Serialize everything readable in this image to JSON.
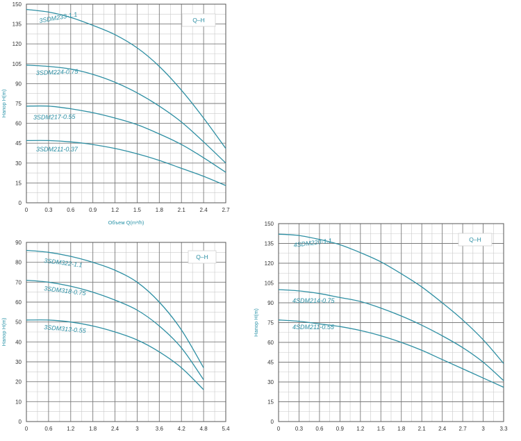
{
  "chart_data": [
    {
      "type": "line",
      "legend": "Q–H",
      "ylabel": "Напор H(m)",
      "xlabel": "Объем Q(m³/h)",
      "xlim": [
        0,
        2.7
      ],
      "ylim": [
        0,
        150
      ],
      "x_ticks": [
        "0",
        "0.3",
        "0.6",
        "0.9",
        "1.2",
        "1.5",
        "1.8",
        "2.1",
        "2.4",
        "2.7"
      ],
      "y_ticks": [
        "0",
        "15",
        "30",
        "45",
        "60",
        "75",
        "90",
        "105",
        "120",
        "135",
        "150"
      ],
      "series": [
        {
          "name": "3SDM233-1.1",
          "x": [
            0,
            0.3,
            0.6,
            0.9,
            1.2,
            1.5,
            1.8,
            2.1,
            2.4,
            2.7
          ],
          "y": [
            146,
            144,
            140,
            134,
            127,
            117,
            103,
            85,
            64,
            41
          ]
        },
        {
          "name": "3SDM224-0.75",
          "x": [
            0,
            0.3,
            0.6,
            0.9,
            1.2,
            1.5,
            1.8,
            2.1,
            2.4,
            2.7
          ],
          "y": [
            104,
            103,
            101,
            97,
            91,
            83,
            73,
            61,
            46,
            30
          ]
        },
        {
          "name": "3SDM217-0.55",
          "x": [
            0,
            0.3,
            0.6,
            0.9,
            1.2,
            1.5,
            1.8,
            2.1,
            2.4,
            2.7
          ],
          "y": [
            73,
            73,
            71,
            68,
            64,
            59,
            52,
            44,
            34,
            23
          ]
        },
        {
          "name": "3SDM211-0.37",
          "x": [
            0,
            0.3,
            0.6,
            0.9,
            1.2,
            1.5,
            1.8,
            2.1,
            2.4,
            2.7
          ],
          "y": [
            47,
            47,
            46,
            44,
            41,
            37,
            32,
            26,
            20,
            13
          ]
        }
      ]
    },
    {
      "type": "line",
      "legend": "Q–H",
      "ylabel": "Напор H(m)",
      "xlabel": "",
      "xlim": [
        0,
        5.4
      ],
      "ylim": [
        0,
        90
      ],
      "x_ticks": [
        "0",
        "0.6",
        "1.2",
        "1.8",
        "2.4",
        "3",
        "3.6",
        "4.2",
        "4.8",
        "5.4"
      ],
      "y_ticks": [
        "0",
        "10",
        "20",
        "30",
        "40",
        "50",
        "60",
        "70",
        "80",
        "90"
      ],
      "series": [
        {
          "name": "3SDM322-1.1",
          "x": [
            0,
            0.6,
            1.2,
            1.8,
            2.4,
            3.0,
            3.6,
            4.2,
            4.8
          ],
          "y": [
            86,
            85,
            83,
            80,
            76,
            70,
            60,
            46,
            27
          ]
        },
        {
          "name": "3SDM318-0.75",
          "x": [
            0,
            0.6,
            1.2,
            1.8,
            2.4,
            3.0,
            3.6,
            4.2,
            4.8
          ],
          "y": [
            71,
            70,
            68,
            65,
            61,
            56,
            48,
            37,
            21
          ]
        },
        {
          "name": "3SDM313-0.55",
          "x": [
            0,
            0.6,
            1.2,
            1.8,
            2.4,
            3.0,
            3.6,
            4.2,
            4.8
          ],
          "y": [
            51,
            51,
            50,
            48,
            45,
            41,
            35,
            27,
            16
          ]
        }
      ]
    },
    {
      "type": "line",
      "legend": "Q–H",
      "ylabel": "Напор H(m)",
      "xlabel": "",
      "xlim": [
        0,
        3.3
      ],
      "ylim": [
        0,
        150
      ],
      "x_ticks": [
        "0",
        "0.3",
        "0.6",
        "0.9",
        "1.2",
        "1.5",
        "1.8",
        "2.1",
        "2.4",
        "2.7",
        "3",
        "3.3"
      ],
      "y_ticks": [
        "0",
        "15",
        "30",
        "45",
        "60",
        "75",
        "90",
        "105",
        "120",
        "135",
        "150"
      ],
      "series": [
        {
          "name": "4SDM220-1.1",
          "x": [
            0,
            0.3,
            0.6,
            0.9,
            1.2,
            1.5,
            1.8,
            2.1,
            2.4,
            2.7,
            3.0,
            3.3
          ],
          "y": [
            142,
            141,
            138,
            134,
            128,
            121,
            112,
            102,
            90,
            77,
            62,
            44
          ]
        },
        {
          "name": "4SDM214-0.75",
          "x": [
            0,
            0.3,
            0.6,
            0.9,
            1.2,
            1.5,
            1.8,
            2.1,
            2.4,
            2.7,
            3.0,
            3.3
          ],
          "y": [
            100,
            99,
            97,
            94,
            91,
            86,
            80,
            73,
            65,
            56,
            45,
            31
          ]
        },
        {
          "name": "4SDM211-0.55",
          "x": [
            0,
            0.3,
            0.6,
            0.9,
            1.2,
            1.5,
            1.8,
            2.1,
            2.4,
            2.7,
            3.0,
            3.3
          ],
          "y": [
            77,
            76,
            74,
            72,
            69,
            65,
            60,
            54,
            47,
            40,
            33,
            26
          ]
        }
      ]
    }
  ]
}
